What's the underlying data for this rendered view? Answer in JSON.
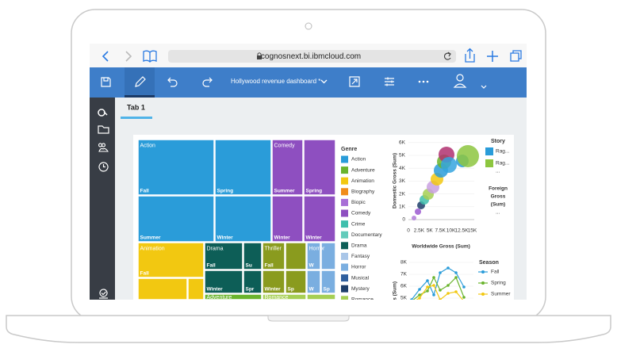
{
  "browser": {
    "url": "cognosnext.bi.ibmcloud.com"
  },
  "app": {
    "title": "Hollywood revenue dashboard *"
  },
  "tab": "Tab 1",
  "treemap": {
    "groups": [
      "Action",
      "Comedy",
      "Animation",
      "Drama",
      "Thriller",
      "Horror",
      "Adventure",
      "Romance"
    ],
    "cells": [
      "Fall",
      "Spring",
      "Summer",
      "Winter",
      "Summer",
      "Spring",
      "Winter",
      "Winter",
      "Fall",
      "Fall",
      "Su",
      "Winter",
      "Spr",
      "Fall",
      "Winter",
      "Sp",
      "W",
      "W",
      "Sp"
    ]
  },
  "legend": {
    "title": "Genre",
    "items": [
      "Action",
      "Adventure",
      "Animation",
      "Biography",
      "Biopic",
      "Comedy",
      "Crime",
      "Documentary",
      "Drama",
      "Fantasy",
      "Horror",
      "Musical",
      "Mystery",
      "Romance"
    ]
  },
  "scatter": {
    "y_label": "Domestic Gross (Sum)",
    "x_label": "Worldwide Gross (Sum)",
    "yticks": [
      "0",
      "1K",
      "2K",
      "3K",
      "4K",
      "5K",
      "6K"
    ],
    "xticks": [
      "0",
      "2.5K",
      "5K",
      "7.5K",
      "10K",
      "12.5K",
      "15K"
    ],
    "legend": {
      "title": "Story",
      "items": [
        "Rag...",
        "Rag..."
      ],
      "more": "...",
      "size_title": [
        "Foreign",
        "Gross",
        "(Sum)"
      ],
      "size_more": "..."
    }
  },
  "line": {
    "y_label": "Domestic Gross (Sum)",
    "yticks": [
      "8K",
      "7K",
      "6K",
      "5K"
    ],
    "legend": {
      "title": "Season",
      "items": [
        "Fall",
        "Spring",
        "Summer"
      ]
    }
  }
}
